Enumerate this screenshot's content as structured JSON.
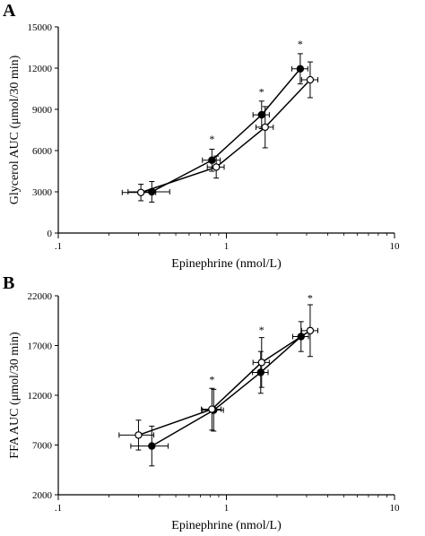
{
  "chart_data": [
    {
      "panel": "A",
      "type": "line",
      "xscale": "log",
      "xlim": [
        0.1,
        10
      ],
      "ylim": [
        0,
        15000
      ],
      "xticks": [
        ".1",
        "1",
        "10"
      ],
      "xtick_values": [
        0.1,
        1,
        10
      ],
      "yticks": [
        "0",
        "3000",
        "6000",
        "9000",
        "12000",
        "15000"
      ],
      "ytick_values": [
        0,
        3000,
        6000,
        9000,
        12000,
        15000
      ],
      "xlabel": "Epinephrine (nmol/L)",
      "ylabel": "Glycerol AUC (μmol/30 min)",
      "series": [
        {
          "marker": "filled",
          "x": [
            0.36,
            0.82,
            1.62,
            2.75
          ],
          "y": [
            3000,
            5300,
            8600,
            11950
          ],
          "yerr": [
            750,
            800,
            1000,
            1100
          ],
          "xerr": [
            0.1,
            0.1,
            0.18,
            0.3
          ]
        },
        {
          "marker": "open",
          "x": [
            0.31,
            0.87,
            1.7,
            3.15
          ],
          "y": [
            2950,
            4800,
            7700,
            11150
          ],
          "yerr": [
            600,
            800,
            1500,
            1300
          ],
          "xerr": [
            0.07,
            0.1,
            0.2,
            0.35
          ]
        }
      ],
      "annotations": [
        {
          "text": "*",
          "x": 0.82,
          "y": 6600
        },
        {
          "text": "*",
          "x": 1.62,
          "y": 10000
        },
        {
          "text": "*",
          "x": 2.75,
          "y": 13500
        }
      ]
    },
    {
      "panel": "B",
      "type": "line",
      "xscale": "log",
      "xlim": [
        0.1,
        10
      ],
      "ylim": [
        2000,
        22000
      ],
      "xticks": [
        ".1",
        "1",
        "10"
      ],
      "xtick_values": [
        0.1,
        1,
        10
      ],
      "yticks": [
        "2000",
        "7000",
        "12000",
        "17000",
        "22000"
      ],
      "ytick_values": [
        2000,
        7000,
        12000,
        17000,
        22000
      ],
      "xlabel": "Epinephrine (nmol/L)",
      "ylabel": "FFA AUC (μmol/30 min)",
      "series": [
        {
          "marker": "filled",
          "x": [
            0.36,
            0.84,
            1.6,
            2.78
          ],
          "y": [
            6900,
            10500,
            14300,
            17900
          ],
          "yerr": [
            2000,
            2100,
            2100,
            1500
          ],
          "xerr": [
            0.09,
            0.12,
            0.17,
            0.3
          ]
        },
        {
          "marker": "open",
          "x": [
            0.3,
            0.82,
            1.62,
            3.15
          ],
          "y": [
            8000,
            10600,
            15300,
            18500
          ],
          "yerr": [
            1500,
            2100,
            2500,
            2600
          ],
          "xerr": [
            0.07,
            0.11,
            0.18,
            0.35
          ]
        }
      ],
      "annotations": [
        {
          "text": "*",
          "x": 0.82,
          "y": 13200
        },
        {
          "text": "*",
          "x": 1.62,
          "y": 18200
        },
        {
          "text": "*",
          "x": 3.15,
          "y": 21400
        }
      ]
    }
  ]
}
